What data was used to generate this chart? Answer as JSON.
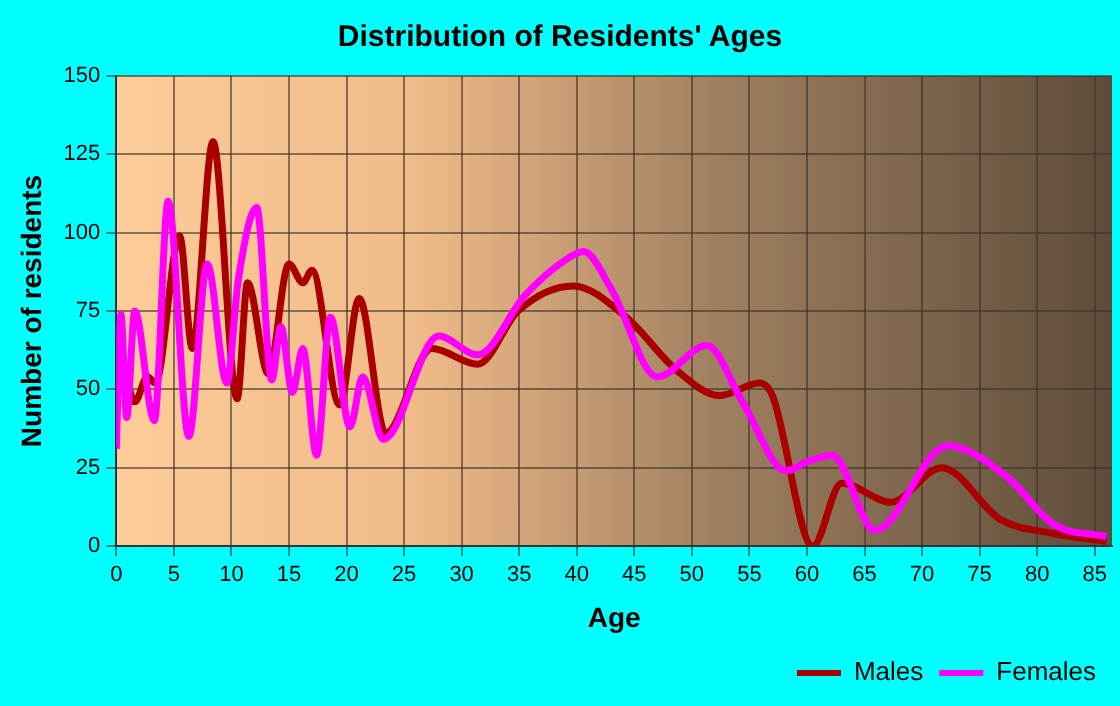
{
  "chart_data": {
    "type": "line",
    "title": "Distribution of Residents' Ages",
    "xlabel": "Age",
    "ylabel": "Number of residents",
    "xlim": [
      0,
      86.5
    ],
    "xticks": [
      0,
      5,
      10,
      15,
      20,
      25,
      30,
      35,
      40,
      45,
      50,
      55,
      60,
      65,
      70,
      75,
      80,
      85
    ],
    "ylim": [
      0,
      150
    ],
    "yticks": [
      0,
      25,
      50,
      75,
      100,
      125,
      150
    ],
    "grid": true,
    "legend": "bottom",
    "marker": "none",
    "line_style": "solid",
    "series": [
      {
        "name": "Males",
        "color": "#aa0000",
        "x": [
          0,
          0.7,
          1.6,
          2.7,
          3.4,
          5.5,
          6.6,
          8.4,
          10.5,
          11.4,
          13.2,
          15,
          16.2,
          17,
          19.4,
          21.1,
          23.4,
          27.4,
          31.4,
          34.9,
          39.7,
          44.3,
          48.7,
          52.4,
          55.9,
          57,
          60.5,
          63,
          67.3,
          71.7,
          76.8,
          81.4,
          86
        ],
        "values": [
          50,
          54,
          46,
          54,
          52,
          99,
          63,
          129,
          47,
          84,
          55,
          90,
          84,
          88,
          45,
          79,
          36,
          63,
          58,
          75,
          83,
          73,
          56,
          48,
          52,
          48,
          0,
          20,
          14,
          25,
          8.5,
          4,
          1.5
        ]
      },
      {
        "name": "Females",
        "color": "#ff00ff",
        "x": [
          0,
          0.4,
          0.9,
          1.6,
          3.3,
          4.5,
          6.3,
          7.9,
          9.6,
          10.6,
          12.2,
          13.5,
          14.3,
          15.3,
          16.2,
          17.4,
          18.6,
          20.3,
          21.4,
          23.2,
          28,
          31.4,
          35.5,
          38.9,
          40.6,
          43,
          47,
          51.3,
          54.4,
          58.2,
          60.1,
          62.2,
          65.9,
          72.2,
          77.4,
          81.4,
          86
        ],
        "values": [
          31,
          74,
          41,
          75,
          40,
          110,
          35,
          90,
          52,
          85,
          108,
          53,
          70,
          49,
          63,
          29,
          73,
          38,
          54,
          34,
          67,
          61,
          80,
          91,
          94,
          82,
          54,
          64,
          46,
          24,
          27,
          29,
          5,
          32,
          22,
          7,
          3
        ]
      }
    ]
  }
}
